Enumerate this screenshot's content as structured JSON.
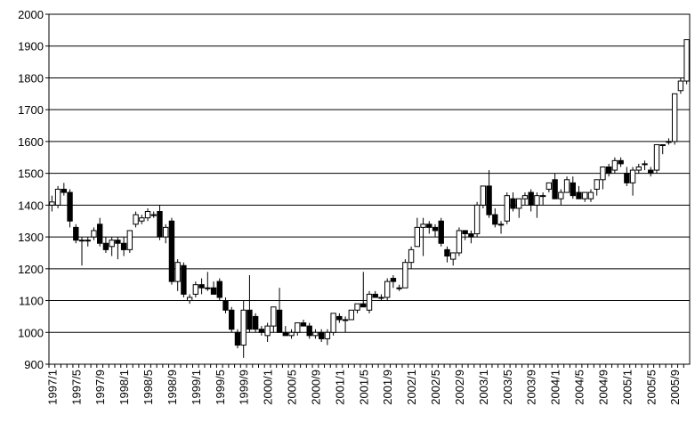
{
  "chart_data": {
    "type": "candlestick",
    "categories": [
      "1997/1",
      null,
      null,
      null,
      "1997/5",
      null,
      null,
      null,
      "1997/9",
      null,
      null,
      null,
      "1998/1",
      null,
      null,
      null,
      "1998/5",
      null,
      null,
      null,
      "1998/9",
      null,
      null,
      null,
      "1999/1",
      null,
      null,
      null,
      "1999/5",
      null,
      null,
      null,
      "1999/9",
      null,
      null,
      null,
      "2000/1",
      null,
      null,
      null,
      "2000/5",
      null,
      null,
      null,
      "2000/9",
      null,
      null,
      null,
      "2001/1",
      null,
      null,
      null,
      "2001/5",
      null,
      null,
      null,
      "2001/9",
      null,
      null,
      null,
      "2002/1",
      null,
      null,
      null,
      "2002/5",
      null,
      null,
      null,
      "2002/9",
      null,
      null,
      null,
      "2003/1",
      null,
      null,
      null,
      "2003/5",
      null,
      null,
      null,
      "2003/9",
      null,
      null,
      null,
      "2004/1",
      null,
      null,
      null,
      "2004/5",
      null,
      null,
      null,
      "2004/9",
      null,
      null,
      null,
      "2005/1",
      null,
      null,
      null,
      "2005/5",
      null,
      null,
      null,
      "2005/9",
      null,
      null
    ],
    "open": [
      1400,
      1400,
      1450,
      1440,
      1330,
      1290,
      1290,
      1300,
      1340,
      1280,
      1270,
      1290,
      1280,
      1260,
      1340,
      1350,
      1360,
      1370,
      1380,
      1300,
      1350,
      1160,
      1210,
      1100,
      1120,
      1150,
      1140,
      1140,
      1160,
      1100,
      1070,
      1000,
      960,
      1070,
      1050,
      1010,
      990,
      1020,
      1070,
      1000,
      990,
      1000,
      1030,
      1020,
      990,
      1000,
      980,
      1000,
      1050,
      1040,
      1040,
      1070,
      1090,
      1070,
      1120,
      1110,
      1110,
      1170,
      1140,
      1140,
      1220,
      1270,
      1330,
      1340,
      1330,
      1350,
      1260,
      1230,
      1250,
      1320,
      1310,
      1310,
      1400,
      1460,
      1370,
      1340,
      1350,
      1420,
      1390,
      1420,
      1440,
      1400,
      1430,
      1450,
      1480,
      1420,
      1440,
      1470,
      1440,
      1420,
      1420,
      1450,
      1480,
      1520,
      1510,
      1540,
      1500,
      1470,
      1510,
      1530,
      1510,
      1510,
      1590,
      1600,
      1600,
      1760,
      1790
    ],
    "high": [
      1430,
      1460,
      1470,
      1450,
      1340,
      1300,
      1300,
      1330,
      1360,
      1300,
      1300,
      1300,
      1300,
      1320,
      1380,
      1370,
      1390,
      1380,
      1400,
      1340,
      1360,
      1230,
      1220,
      1120,
      1160,
      1170,
      1190,
      1160,
      1170,
      1110,
      1080,
      1010,
      1100,
      1180,
      1060,
      1020,
      1030,
      1080,
      1140,
      1020,
      1010,
      1030,
      1040,
      1030,
      1010,
      1010,
      1010,
      1060,
      1060,
      1050,
      1070,
      1090,
      1190,
      1130,
      1130,
      1120,
      1170,
      1180,
      1150,
      1230,
      1270,
      1360,
      1360,
      1350,
      1340,
      1360,
      1270,
      1250,
      1330,
      1320,
      1320,
      1410,
      1460,
      1510,
      1390,
      1350,
      1440,
      1440,
      1420,
      1440,
      1450,
      1440,
      1440,
      1470,
      1500,
      1450,
      1490,
      1490,
      1460,
      1440,
      1450,
      1480,
      1520,
      1530,
      1550,
      1550,
      1520,
      1520,
      1530,
      1540,
      1520,
      1590,
      1590,
      1610,
      1750,
      1800,
      1920
    ],
    "low": [
      1380,
      1390,
      1430,
      1330,
      1280,
      1210,
      1270,
      1290,
      1270,
      1250,
      1240,
      1230,
      1240,
      1250,
      1330,
      1340,
      1350,
      1360,
      1290,
      1280,
      1150,
      1130,
      1110,
      1090,
      1110,
      1120,
      1130,
      1130,
      1100,
      1060,
      1000,
      950,
      920,
      1000,
      1000,
      990,
      970,
      1000,
      1000,
      990,
      980,
      990,
      1020,
      980,
      980,
      970,
      960,
      990,
      1030,
      1000,
      1040,
      1060,
      1080,
      1060,
      1110,
      1100,
      1100,
      1140,
      1130,
      1140,
      1200,
      1270,
      1240,
      1310,
      1300,
      1270,
      1220,
      1210,
      1240,
      1290,
      1280,
      1300,
      1390,
      1360,
      1330,
      1310,
      1340,
      1380,
      1360,
      1400,
      1380,
      1360,
      1400,
      1440,
      1420,
      1400,
      1440,
      1420,
      1420,
      1410,
      1410,
      1430,
      1450,
      1490,
      1500,
      1520,
      1460,
      1430,
      1500,
      1510,
      1490,
      1500,
      1560,
      1590,
      1590,
      1750,
      1780
    ],
    "close": [
      1410,
      1450,
      1440,
      1350,
      1290,
      1290,
      1290,
      1320,
      1280,
      1260,
      1290,
      1280,
      1260,
      1320,
      1370,
      1360,
      1380,
      1370,
      1300,
      1330,
      1160,
      1220,
      1120,
      1110,
      1150,
      1140,
      1140,
      1120,
      1110,
      1070,
      1010,
      960,
      1070,
      1010,
      1010,
      1000,
      1020,
      1080,
      1000,
      990,
      1000,
      1030,
      1020,
      990,
      1000,
      980,
      1000,
      1060,
      1040,
      1040,
      1070,
      1090,
      1080,
      1120,
      1110,
      1110,
      1160,
      1160,
      1140,
      1220,
      1260,
      1330,
      1340,
      1330,
      1320,
      1280,
      1240,
      1250,
      1320,
      1310,
      1300,
      1400,
      1460,
      1370,
      1340,
      1340,
      1430,
      1390,
      1420,
      1430,
      1400,
      1430,
      1430,
      1470,
      1420,
      1440,
      1480,
      1430,
      1420,
      1440,
      1440,
      1480,
      1520,
      1500,
      1540,
      1530,
      1470,
      1510,
      1520,
      1530,
      1500,
      1590,
      1590,
      1600,
      1750,
      1790,
      1920
    ],
    "up_color": "#ffffff",
    "down_color": "#000000",
    "ylim": [
      900,
      2000
    ],
    "yticks": [
      900,
      1000,
      1100,
      1200,
      1300,
      1400,
      1500,
      1600,
      1700,
      1800,
      1900,
      2000
    ],
    "grid": true
  }
}
